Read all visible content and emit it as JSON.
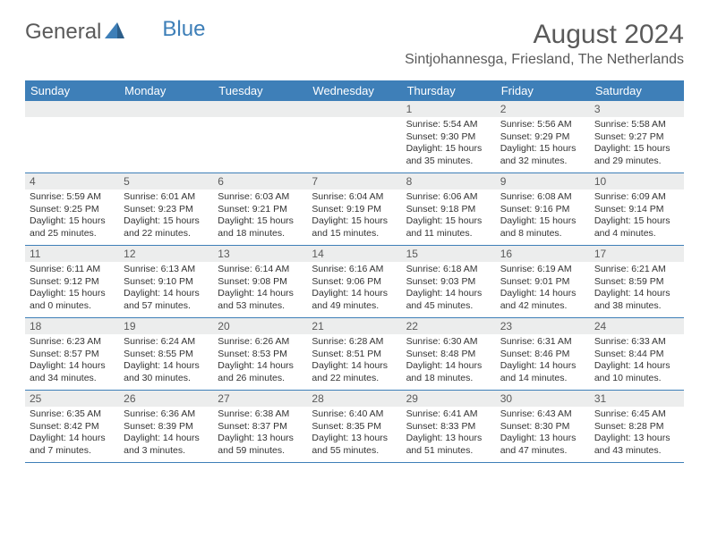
{
  "logo": {
    "text1": "General",
    "text2": "Blue"
  },
  "title": "August 2024",
  "location": "Sintjohannesga, Friesland, The Netherlands",
  "headers": [
    "Sunday",
    "Monday",
    "Tuesday",
    "Wednesday",
    "Thursday",
    "Friday",
    "Saturday"
  ],
  "colors": {
    "accent": "#3e7fb8",
    "headerText": "#ffffff",
    "dayNumBg": "#eceded",
    "text": "#333333",
    "grayText": "#5a5a5a"
  },
  "weeks": [
    [
      {
        "n": "",
        "sr": "",
        "ss": "",
        "dl": ""
      },
      {
        "n": "",
        "sr": "",
        "ss": "",
        "dl": ""
      },
      {
        "n": "",
        "sr": "",
        "ss": "",
        "dl": ""
      },
      {
        "n": "",
        "sr": "",
        "ss": "",
        "dl": ""
      },
      {
        "n": "1",
        "sr": "5:54 AM",
        "ss": "9:30 PM",
        "dl": "15 hours and 35 minutes."
      },
      {
        "n": "2",
        "sr": "5:56 AM",
        "ss": "9:29 PM",
        "dl": "15 hours and 32 minutes."
      },
      {
        "n": "3",
        "sr": "5:58 AM",
        "ss": "9:27 PM",
        "dl": "15 hours and 29 minutes."
      }
    ],
    [
      {
        "n": "4",
        "sr": "5:59 AM",
        "ss": "9:25 PM",
        "dl": "15 hours and 25 minutes."
      },
      {
        "n": "5",
        "sr": "6:01 AM",
        "ss": "9:23 PM",
        "dl": "15 hours and 22 minutes."
      },
      {
        "n": "6",
        "sr": "6:03 AM",
        "ss": "9:21 PM",
        "dl": "15 hours and 18 minutes."
      },
      {
        "n": "7",
        "sr": "6:04 AM",
        "ss": "9:19 PM",
        "dl": "15 hours and 15 minutes."
      },
      {
        "n": "8",
        "sr": "6:06 AM",
        "ss": "9:18 PM",
        "dl": "15 hours and 11 minutes."
      },
      {
        "n": "9",
        "sr": "6:08 AM",
        "ss": "9:16 PM",
        "dl": "15 hours and 8 minutes."
      },
      {
        "n": "10",
        "sr": "6:09 AM",
        "ss": "9:14 PM",
        "dl": "15 hours and 4 minutes."
      }
    ],
    [
      {
        "n": "11",
        "sr": "6:11 AM",
        "ss": "9:12 PM",
        "dl": "15 hours and 0 minutes."
      },
      {
        "n": "12",
        "sr": "6:13 AM",
        "ss": "9:10 PM",
        "dl": "14 hours and 57 minutes."
      },
      {
        "n": "13",
        "sr": "6:14 AM",
        "ss": "9:08 PM",
        "dl": "14 hours and 53 minutes."
      },
      {
        "n": "14",
        "sr": "6:16 AM",
        "ss": "9:06 PM",
        "dl": "14 hours and 49 minutes."
      },
      {
        "n": "15",
        "sr": "6:18 AM",
        "ss": "9:03 PM",
        "dl": "14 hours and 45 minutes."
      },
      {
        "n": "16",
        "sr": "6:19 AM",
        "ss": "9:01 PM",
        "dl": "14 hours and 42 minutes."
      },
      {
        "n": "17",
        "sr": "6:21 AM",
        "ss": "8:59 PM",
        "dl": "14 hours and 38 minutes."
      }
    ],
    [
      {
        "n": "18",
        "sr": "6:23 AM",
        "ss": "8:57 PM",
        "dl": "14 hours and 34 minutes."
      },
      {
        "n": "19",
        "sr": "6:24 AM",
        "ss": "8:55 PM",
        "dl": "14 hours and 30 minutes."
      },
      {
        "n": "20",
        "sr": "6:26 AM",
        "ss": "8:53 PM",
        "dl": "14 hours and 26 minutes."
      },
      {
        "n": "21",
        "sr": "6:28 AM",
        "ss": "8:51 PM",
        "dl": "14 hours and 22 minutes."
      },
      {
        "n": "22",
        "sr": "6:30 AM",
        "ss": "8:48 PM",
        "dl": "14 hours and 18 minutes."
      },
      {
        "n": "23",
        "sr": "6:31 AM",
        "ss": "8:46 PM",
        "dl": "14 hours and 14 minutes."
      },
      {
        "n": "24",
        "sr": "6:33 AM",
        "ss": "8:44 PM",
        "dl": "14 hours and 10 minutes."
      }
    ],
    [
      {
        "n": "25",
        "sr": "6:35 AM",
        "ss": "8:42 PM",
        "dl": "14 hours and 7 minutes."
      },
      {
        "n": "26",
        "sr": "6:36 AM",
        "ss": "8:39 PM",
        "dl": "14 hours and 3 minutes."
      },
      {
        "n": "27",
        "sr": "6:38 AM",
        "ss": "8:37 PM",
        "dl": "13 hours and 59 minutes."
      },
      {
        "n": "28",
        "sr": "6:40 AM",
        "ss": "8:35 PM",
        "dl": "13 hours and 55 minutes."
      },
      {
        "n": "29",
        "sr": "6:41 AM",
        "ss": "8:33 PM",
        "dl": "13 hours and 51 minutes."
      },
      {
        "n": "30",
        "sr": "6:43 AM",
        "ss": "8:30 PM",
        "dl": "13 hours and 47 minutes."
      },
      {
        "n": "31",
        "sr": "6:45 AM",
        "ss": "8:28 PM",
        "dl": "13 hours and 43 minutes."
      }
    ]
  ],
  "labels": {
    "sunrise": "Sunrise:",
    "sunset": "Sunset:",
    "daylight": "Daylight:"
  }
}
